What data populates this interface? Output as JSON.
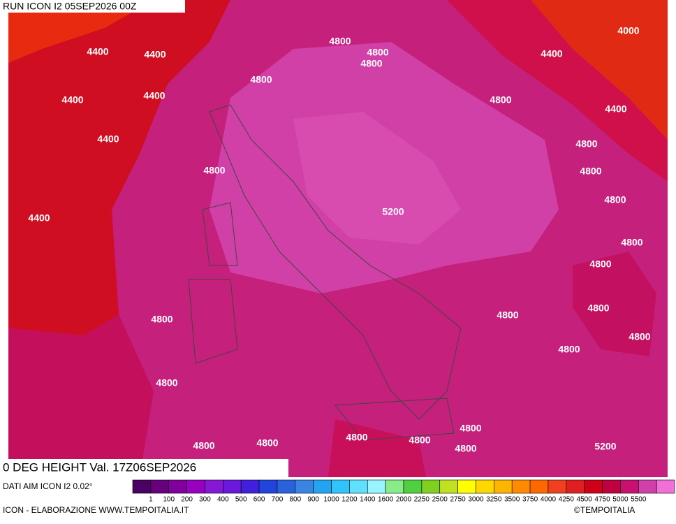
{
  "header": {
    "title": "RUN ICON I2 05SEP2026 00Z"
  },
  "map": {
    "labels": [
      "4000",
      "4400",
      "4400",
      "4400",
      "4400",
      "4400",
      "4400",
      "4400",
      "4400",
      "4800",
      "4800",
      "4800",
      "4800",
      "4800",
      "4800",
      "4800",
      "4800",
      "4800",
      "4800",
      "4800",
      "4800",
      "4800",
      "4800",
      "4800",
      "4800",
      "4800",
      "4800",
      "4800",
      "4800",
      "4800",
      "4800",
      "4800",
      "5200",
      "5200"
    ]
  },
  "footer": {
    "field": "0 DEG HEIGHT Val. 17Z06SEP2026",
    "source": "DATI AIM ICON I2 0.02°",
    "credit": "ICON - ELABORAZIONE WWW.TEMPOITALIA.IT",
    "copyright": "©TEMPOITALIA"
  },
  "legend": {
    "colors": [
      "#4b0064",
      "#68007e",
      "#80009c",
      "#9800c0",
      "#8418d4",
      "#6a18dc",
      "#4020dc",
      "#2044dc",
      "#2a62dc",
      "#3a84e4",
      "#22a4f0",
      "#30c4fc",
      "#60e0ff",
      "#98f4ff",
      "#88ec88",
      "#50d040",
      "#80d020",
      "#c0e020",
      "#ffff00",
      "#ffd800",
      "#ffb400",
      "#ff8c00",
      "#ff6800",
      "#f04020",
      "#e02020",
      "#d00018",
      "#c00040",
      "#c81070",
      "#d040a8",
      "#f070d8"
    ],
    "labels": [
      "1",
      "100",
      "200",
      "300",
      "400",
      "500",
      "600",
      "700",
      "800",
      "900",
      "1000",
      "1200",
      "1400",
      "1600",
      "2000",
      "2250",
      "2500",
      "2750",
      "3000",
      "3250",
      "3500",
      "3750",
      "4000",
      "4250",
      "4500",
      "4750",
      "5000",
      "5500"
    ]
  }
}
